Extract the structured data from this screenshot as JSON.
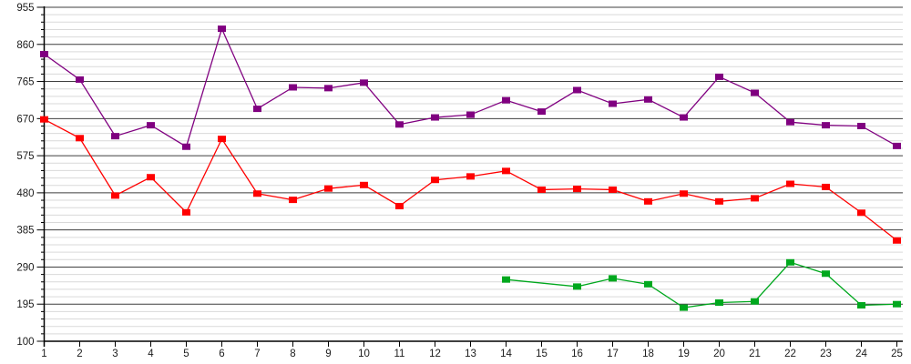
{
  "chart_data": {
    "type": "line",
    "title": "",
    "xlabel": "",
    "ylabel": "",
    "legend": "none",
    "grid": "horizontal only; dark major lines every 95 units, light minor lines every 19 units",
    "xlim": [
      1,
      25
    ],
    "ylim": [
      100,
      955
    ],
    "y_major_step": 95,
    "y_minor_step": 19,
    "x_tick_labels": [
      "1",
      "2",
      "3",
      "4",
      "5",
      "6",
      "7",
      "8",
      "9",
      "10",
      "11",
      "12",
      "13",
      "14",
      "15",
      "16",
      "17",
      "18",
      "19",
      "20",
      "21",
      "22",
      "23",
      "24",
      "25"
    ],
    "y_tick_labels": [
      "100",
      "195",
      "290",
      "385",
      "480",
      "575",
      "670",
      "765",
      "860",
      "955"
    ],
    "series": [
      {
        "name": "purple-series",
        "color": "#800080",
        "marker": "square",
        "points": [
          {
            "x": 1,
            "y": 835
          },
          {
            "x": 2,
            "y": 770
          },
          {
            "x": 3,
            "y": 625
          },
          {
            "x": 4,
            "y": 653
          },
          {
            "x": 5,
            "y": 598
          },
          {
            "x": 6,
            "y": 900
          },
          {
            "x": 7,
            "y": 695
          },
          {
            "x": 8,
            "y": 750
          },
          {
            "x": 9,
            "y": 748
          },
          {
            "x": 10,
            "y": 762
          },
          {
            "x": 11,
            "y": 655
          },
          {
            "x": 12,
            "y": 673
          },
          {
            "x": 13,
            "y": 680
          },
          {
            "x": 14,
            "y": 717
          },
          {
            "x": 15,
            "y": 688
          },
          {
            "x": 16,
            "y": 743
          },
          {
            "x": 17,
            "y": 708
          },
          {
            "x": 18,
            "y": 719
          },
          {
            "x": 19,
            "y": 673
          },
          {
            "x": 20,
            "y": 777
          },
          {
            "x": 21,
            "y": 736
          },
          {
            "x": 22,
            "y": 661
          },
          {
            "x": 23,
            "y": 653
          },
          {
            "x": 24,
            "y": 651
          },
          {
            "x": 25,
            "y": 600
          }
        ]
      },
      {
        "name": "red-series",
        "color": "#ff0000",
        "marker": "square",
        "points": [
          {
            "x": 1,
            "y": 668
          },
          {
            "x": 2,
            "y": 620
          },
          {
            "x": 3,
            "y": 473
          },
          {
            "x": 4,
            "y": 520
          },
          {
            "x": 5,
            "y": 430
          },
          {
            "x": 6,
            "y": 618
          },
          {
            "x": 7,
            "y": 478
          },
          {
            "x": 8,
            "y": 462
          },
          {
            "x": 9,
            "y": 491
          },
          {
            "x": 10,
            "y": 500
          },
          {
            "x": 11,
            "y": 446
          },
          {
            "x": 12,
            "y": 513
          },
          {
            "x": 13,
            "y": 522
          },
          {
            "x": 14,
            "y": 536
          },
          {
            "x": 15,
            "y": 488
          },
          {
            "x": 16,
            "y": 490
          },
          {
            "x": 17,
            "y": 488
          },
          {
            "x": 18,
            "y": 458
          },
          {
            "x": 19,
            "y": 478
          },
          {
            "x": 20,
            "y": 458
          },
          {
            "x": 21,
            "y": 466
          },
          {
            "x": 22,
            "y": 503
          },
          {
            "x": 23,
            "y": 495
          },
          {
            "x": 24,
            "y": 429
          },
          {
            "x": 25,
            "y": 358
          }
        ]
      },
      {
        "name": "green-series",
        "color": "#00a81e",
        "marker": "square",
        "points": [
          {
            "x": 14,
            "y": 258
          },
          {
            "x": 16,
            "y": 240
          },
          {
            "x": 17,
            "y": 261
          },
          {
            "x": 18,
            "y": 246
          },
          {
            "x": 19,
            "y": 186
          },
          {
            "x": 20,
            "y": 199
          },
          {
            "x": 21,
            "y": 202
          },
          {
            "x": 22,
            "y": 302
          },
          {
            "x": 23,
            "y": 273
          },
          {
            "x": 24,
            "y": 192
          },
          {
            "x": 25,
            "y": 195
          }
        ]
      }
    ],
    "colors": {
      "background": "#ffffff",
      "axis": "#000000",
      "major_gridline": "#3f3f3f",
      "minor_gridline": "#d9d9d9",
      "tick_label": "#1c1c1c"
    }
  }
}
